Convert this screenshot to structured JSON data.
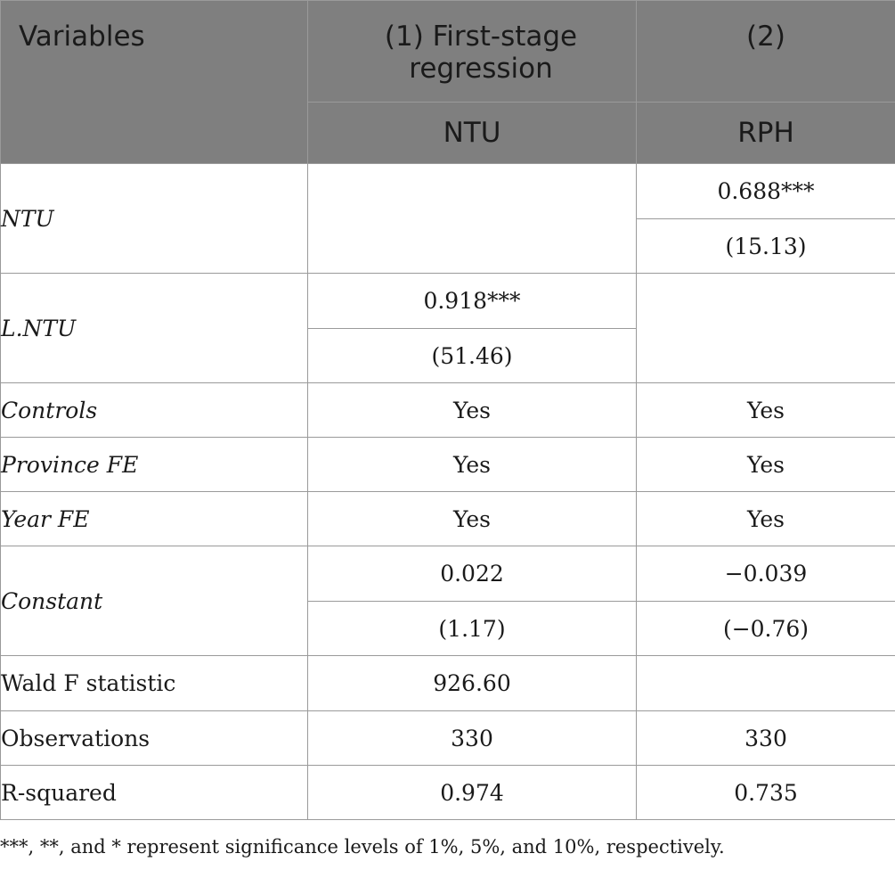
{
  "header": {
    "variables": "Variables",
    "col1_title": "(1) First-stage regression",
    "col2_title": "(2)",
    "col1_dep": "NTU",
    "col2_dep": "RPH"
  },
  "rows": {
    "ntu": {
      "label": "NTU",
      "col2_coef": "0.688***",
      "col2_t": "(15.13)"
    },
    "lntu": {
      "label": "L.NTU",
      "col1_coef": "0.918***",
      "col1_t": "(51.46)"
    },
    "controls": {
      "label": "Controls",
      "col1": "Yes",
      "col2": "Yes"
    },
    "province_fe": {
      "label": "Province FE",
      "col1": "Yes",
      "col2": "Yes"
    },
    "year_fe": {
      "label": "Year FE",
      "col1": "Yes",
      "col2": "Yes"
    },
    "constant": {
      "label": "Constant",
      "col1_coef": "0.022",
      "col1_t": "(1.17)",
      "col2_coef": "−0.039",
      "col2_t": "(−0.76)"
    },
    "wald": {
      "label": "Wald F statistic",
      "col1": "926.60",
      "col2": ""
    },
    "observations": {
      "label": "Observations",
      "col1": "330",
      "col2": "330"
    },
    "rsquared": {
      "label": "R-squared",
      "col1": "0.974",
      "col2": "0.735"
    }
  },
  "note": "***, **, and * represent significance levels of 1%, 5%, and 10%, respectively.",
  "colors": {
    "header_bg": "#7f7f7f",
    "header_text": "#ffffff",
    "border": "#9a9a9a"
  }
}
